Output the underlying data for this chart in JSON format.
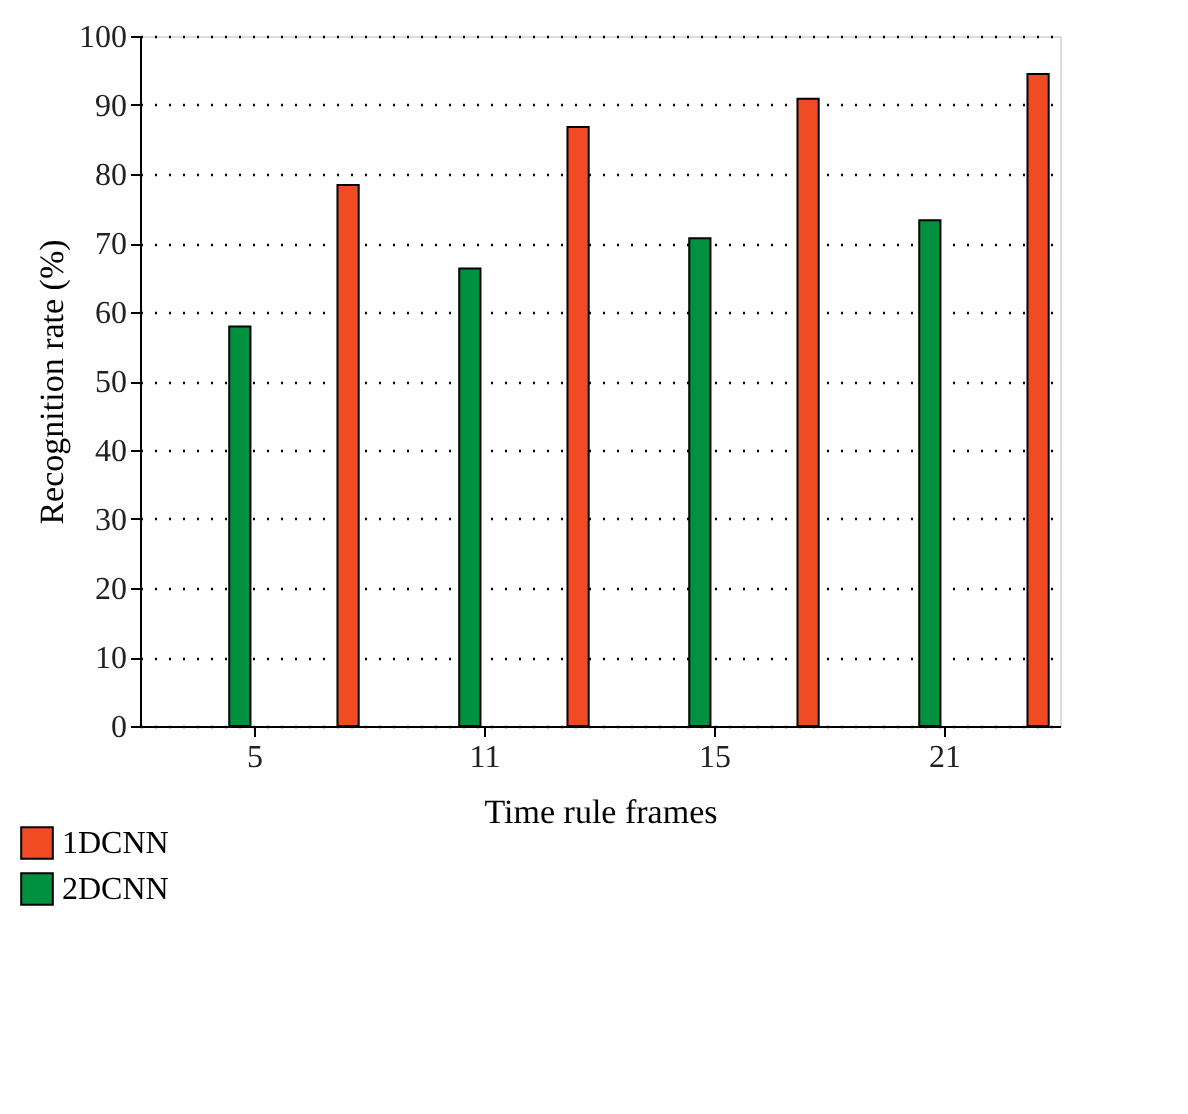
{
  "chart_data": {
    "type": "bar",
    "xlabel": "Time rule frames",
    "ylabel": "Recognition rate (%)",
    "categories": [
      "5",
      "11",
      "15",
      "21"
    ],
    "series": [
      {
        "name": "2DCNN",
        "color": "#009140",
        "values": [
          57.9,
          66.3,
          70.7,
          73.3
        ]
      },
      {
        "name": "1DCNN",
        "color": "#f04b23",
        "values": [
          78.4,
          86.8,
          90.9,
          94.5
        ]
      }
    ],
    "ylim": [
      0,
      100
    ],
    "yticks": [
      0,
      10,
      20,
      30,
      40,
      50,
      60,
      70,
      80,
      90,
      100
    ],
    "grid": "y",
    "legend": "bottom left"
  }
}
